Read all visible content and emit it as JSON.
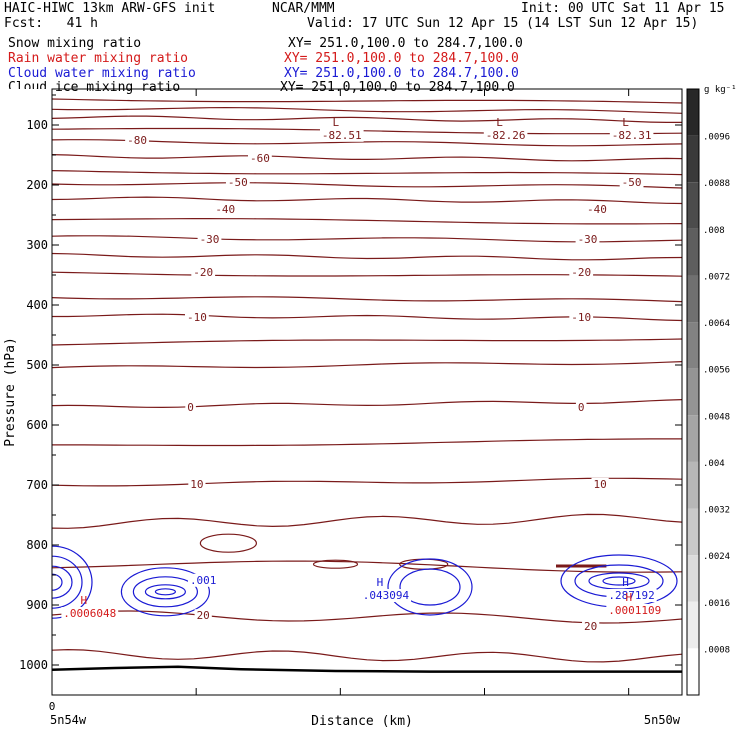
{
  "header": {
    "model": "HAIC-HIWC 13km ARW-GFS init",
    "org": "NCAR/MMM",
    "init": "Init: 00 UTC Sat 11 Apr 15",
    "fcst": "Fcst:   41 h",
    "valid": "Valid: 17 UTC Sun 12 Apr 15 (14 LST Sun 12 Apr 15)"
  },
  "fields": [
    {
      "name": "Snow mixing ratio",
      "xy": "XY= 251.0,100.0 to 284.7,100.0",
      "color": "#000000"
    },
    {
      "name": "Rain water mixing ratio",
      "xy": "XY= 251.0,100.0 to 284.7,100.0",
      "color": "#d41a1a"
    },
    {
      "name": "Cloud water mixing ratio",
      "xy": "XY= 251.0,100.0 to 284.7,100.0",
      "color": "#1a1ad4"
    },
    {
      "name": "Cloud ice mixing ratio",
      "xy": "XY= 251.0,100.0 to 284.7,100.0",
      "color": "#000000"
    }
  ],
  "colors": {
    "isotherm": "#7a1a1a",
    "cloud_water": "#1a1ad4",
    "rain": "#d41a1a",
    "terrain": "#000000"
  },
  "chart_data": {
    "type": "contour",
    "ylabel": "Pressure (hPa)",
    "xlabel": "Distance (km)",
    "x_start_tick": "0",
    "x_left_label": "5n54w",
    "x_right_label": "5n50w",
    "ylim": [
      1050,
      40
    ],
    "y_ticks": [
      "100",
      "200",
      "300",
      "400",
      "500",
      "600",
      "700",
      "800",
      "900",
      "1000"
    ],
    "colorbar": {
      "units": "g kg⁻¹",
      "ticks": [
        ".0096",
        ".0088",
        ".008",
        ".0072",
        ".0064",
        ".0056",
        ".0048",
        ".004",
        ".0032",
        ".0024",
        ".0016",
        ".0008"
      ]
    },
    "isotherm_labels": [
      {
        "text": "-80",
        "p": 125,
        "x": 0.135
      },
      {
        "text": "-60",
        "p": 155,
        "x": 0.33
      },
      {
        "text": "-50",
        "p": 195,
        "x": 0.295
      },
      {
        "text": "-50",
        "p": 195,
        "x": 0.92
      },
      {
        "text": "-40",
        "p": 240,
        "x": 0.275
      },
      {
        "text": "-40",
        "p": 240,
        "x": 0.865
      },
      {
        "text": "-30",
        "p": 290,
        "x": 0.25
      },
      {
        "text": "-30",
        "p": 290,
        "x": 0.85
      },
      {
        "text": "-20",
        "p": 345,
        "x": 0.24
      },
      {
        "text": "-20",
        "p": 345,
        "x": 0.84
      },
      {
        "text": "-10",
        "p": 420,
        "x": 0.23
      },
      {
        "text": "-10",
        "p": 420,
        "x": 0.84
      },
      {
        "text": "0",
        "p": 570,
        "x": 0.22
      },
      {
        "text": "0",
        "p": 570,
        "x": 0.84
      },
      {
        "text": "10",
        "p": 698,
        "x": 0.23
      },
      {
        "text": "10",
        "p": 698,
        "x": 0.87
      },
      {
        "text": "20",
        "p": 917,
        "x": 0.24
      },
      {
        "text": "20",
        "p": 935,
        "x": 0.855
      }
    ],
    "extrema": [
      {
        "mark": "L",
        "value": "-82.51",
        "p": 108,
        "x": 0.46,
        "color": "isotherm"
      },
      {
        "mark": "L",
        "value": "-82.26",
        "p": 108,
        "x": 0.72,
        "color": "isotherm"
      },
      {
        "mark": "L",
        "value": "-82.31",
        "p": 108,
        "x": 0.92,
        "color": "isotherm"
      },
      {
        "mark": "H",
        "value": ".043094",
        "p": 875,
        "x": 0.53,
        "color": "cloud_water"
      },
      {
        "mark": "H",
        "value": ".287192",
        "p": 875,
        "x": 0.92,
        "color": "cloud_water"
      },
      {
        "mark": "H",
        "value": ".0006048",
        "p": 905,
        "x": 0.06,
        "color": "rain"
      },
      {
        "mark": "H",
        "value": ".0001109",
        "p": 900,
        "x": 0.925,
        "color": "rain"
      }
    ],
    "cloud_label": {
      "text": ".001",
      "p": 858,
      "x": 0.24
    },
    "isotherm_levels": [
      60,
      75,
      90,
      110,
      130,
      155,
      180,
      200,
      225,
      260,
      290,
      320,
      350,
      390,
      420,
      460,
      500,
      565,
      630,
      695,
      760,
      835,
      920,
      985
    ]
  }
}
